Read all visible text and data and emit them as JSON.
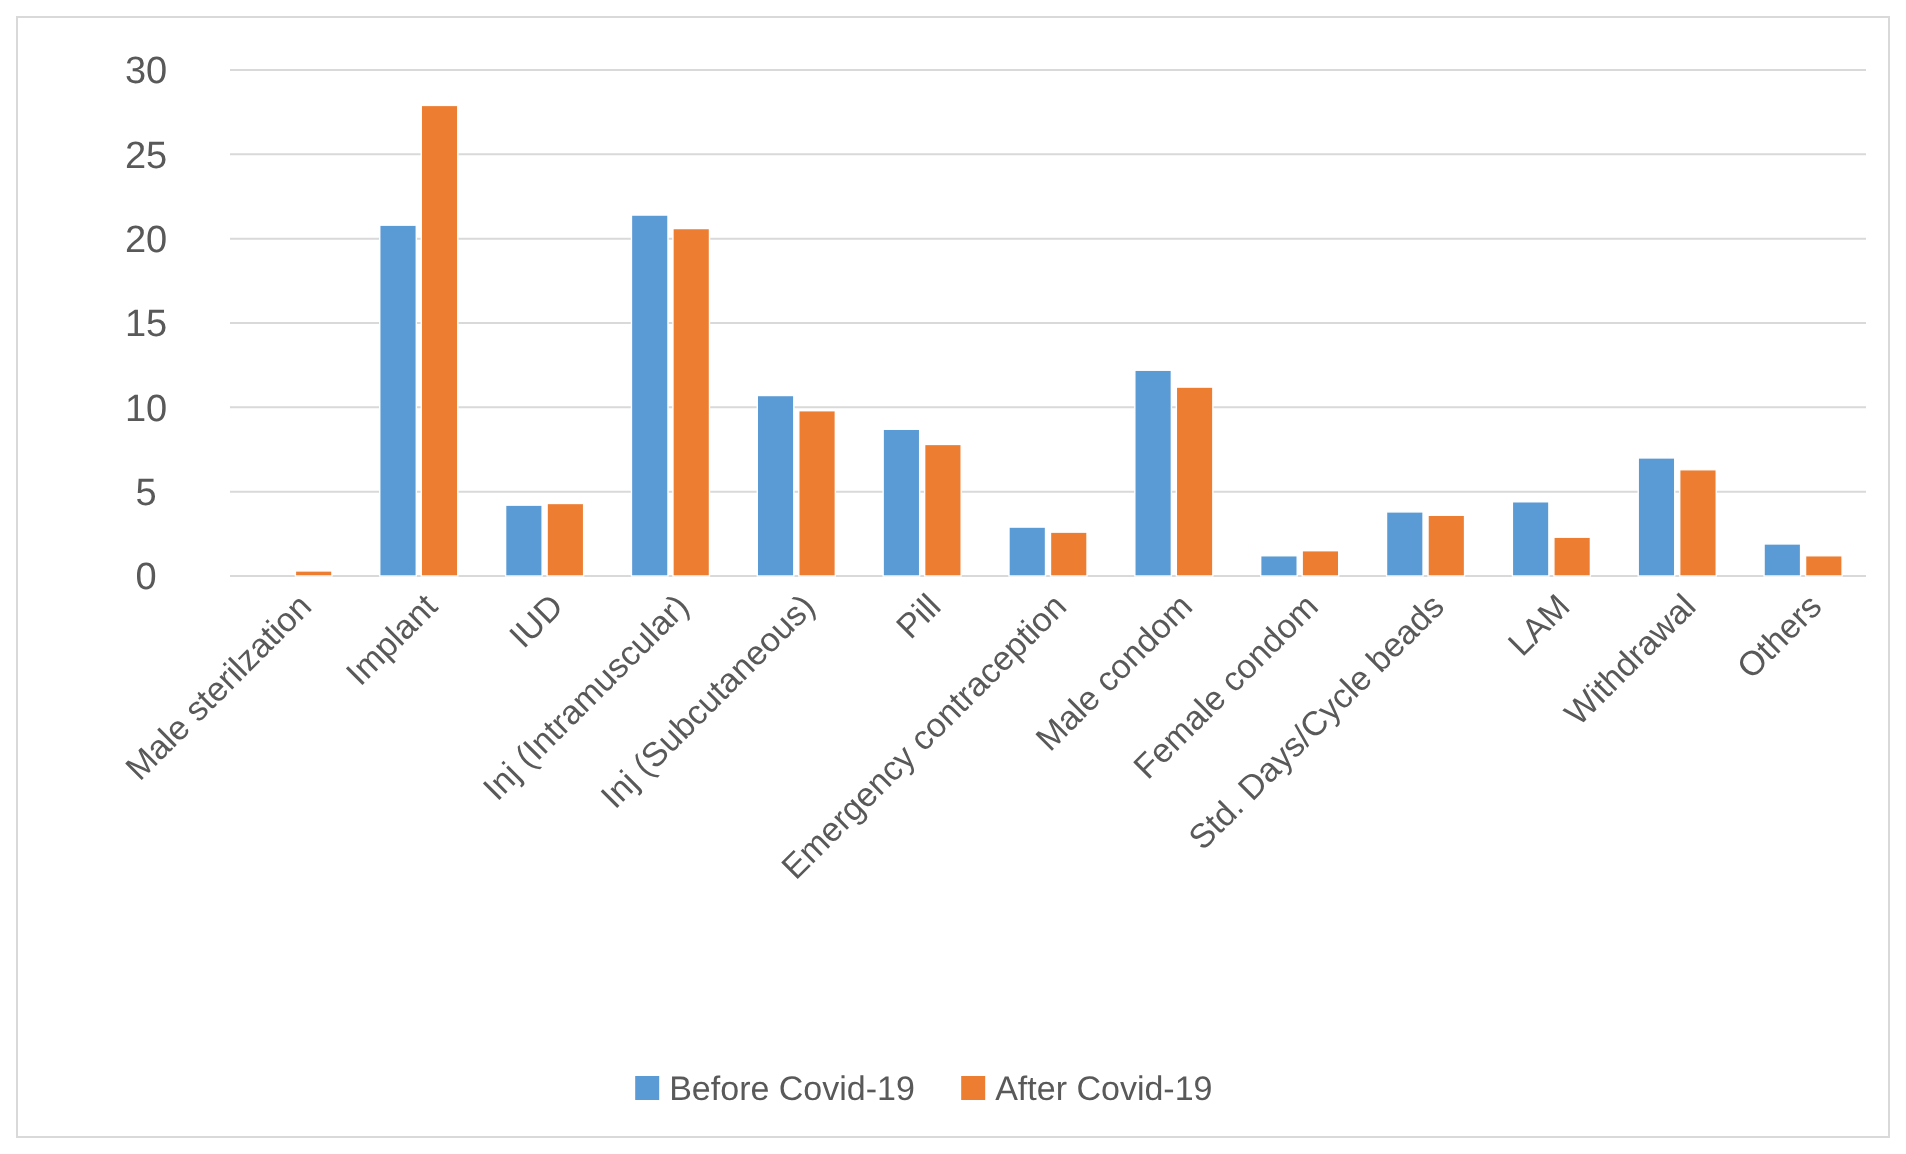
{
  "chart_data": {
    "type": "bar",
    "categories": [
      "Male sterilzation",
      "Implant",
      "IUD",
      "Inj (Intramuscular)",
      "Inj (Subcutaneous)",
      "Pill",
      "Emergency contraception",
      "Male condom",
      "Female condom",
      "Std. Days/Cycle beads",
      "LAM",
      "Withdrawal",
      "Others"
    ],
    "series": [
      {
        "name": "Before Covid-19",
        "color": "#5b9bd5",
        "values": [
          0,
          20.8,
          4.2,
          21.4,
          10.7,
          8.7,
          2.9,
          12.2,
          1.2,
          3.8,
          4.4,
          7.0,
          1.9
        ]
      },
      {
        "name": "After Covid-19",
        "color": "#ed7d31",
        "values": [
          0.3,
          27.9,
          4.3,
          20.6,
          9.8,
          7.8,
          2.6,
          11.2,
          1.5,
          3.6,
          2.3,
          6.3,
          1.2
        ]
      }
    ],
    "ylim": [
      0,
      30
    ],
    "yticks": [
      0,
      5,
      10,
      15,
      20,
      25,
      30
    ],
    "grid": "y",
    "legend": "bottom"
  }
}
